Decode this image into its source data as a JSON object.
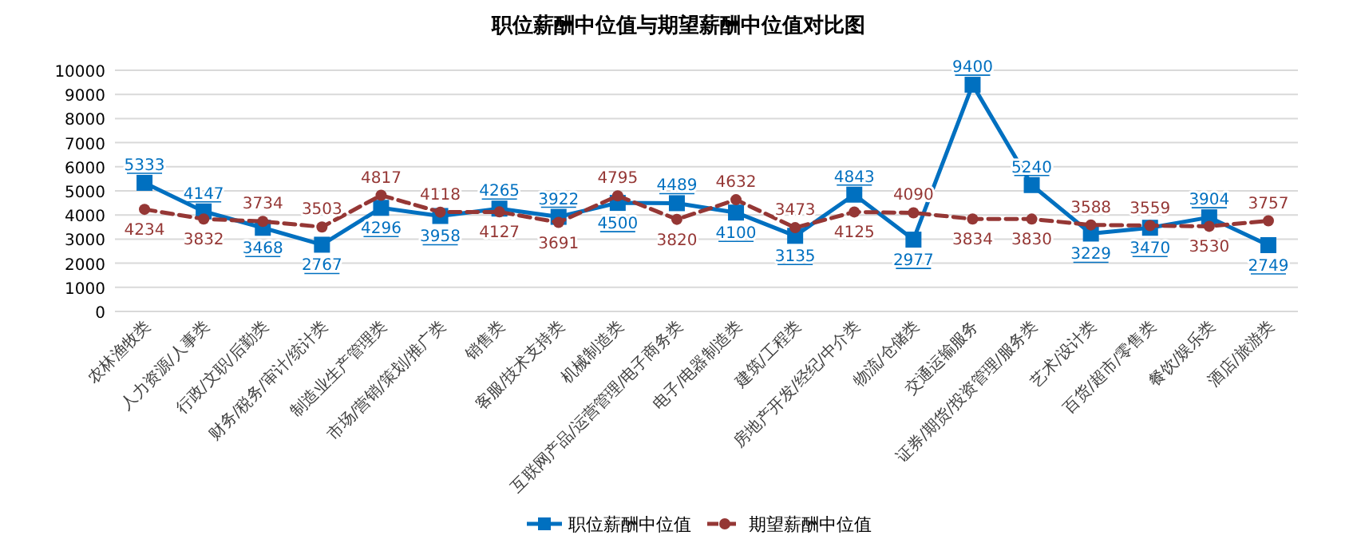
{
  "chart_data": {
    "type": "line",
    "title": "职位薪酬中位值与期望薪酬中位值对比图",
    "categories": [
      "农林渔牧类",
      "人力资源/人事类",
      "行政/文职/后勤类",
      "财务/税务/审计/统计类",
      "制造业生产管理类",
      "市场/营销/策划/推广类",
      "销售类",
      "客服/技术支持类",
      "机械制造类",
      "互联网产品/运营管理/电子商务类",
      "电子/电器制造类",
      "建筑/工程类",
      "房地产开发/经纪/中介类",
      "物流/仓储类",
      "交通运输服务",
      "证券/期货/投资管理/服务类",
      "艺术/设计类",
      "百货/超市/零售类",
      "餐饮/娱乐类",
      "酒店/旅游类"
    ],
    "series": [
      {
        "name": "职位薪酬中位值",
        "color": "#0070c0",
        "marker": "square",
        "line_style": "solid",
        "values": [
          5333,
          4147,
          3468,
          2767,
          4296,
          3958,
          4265,
          3922,
          4500,
          4489,
          4100,
          3135,
          4843,
          2977,
          9400,
          5240,
          3229,
          3470,
          3904,
          2749
        ]
      },
      {
        "name": "期望薪酬中位值",
        "color": "#953735",
        "marker": "circle",
        "line_style": "dashed",
        "values": [
          4234,
          3832,
          3734,
          3503,
          4817,
          4118,
          4127,
          3691,
          4795,
          3820,
          4632,
          3473,
          4125,
          4090,
          3834,
          3830,
          3588,
          3559,
          3530,
          3757
        ]
      }
    ],
    "ylim": [
      0,
      10000
    ],
    "yticks": [
      0,
      1000,
      2000,
      3000,
      4000,
      5000,
      6000,
      7000,
      8000,
      9000,
      10000
    ],
    "grid": "y",
    "legend": "bottom",
    "data_labels": true
  }
}
